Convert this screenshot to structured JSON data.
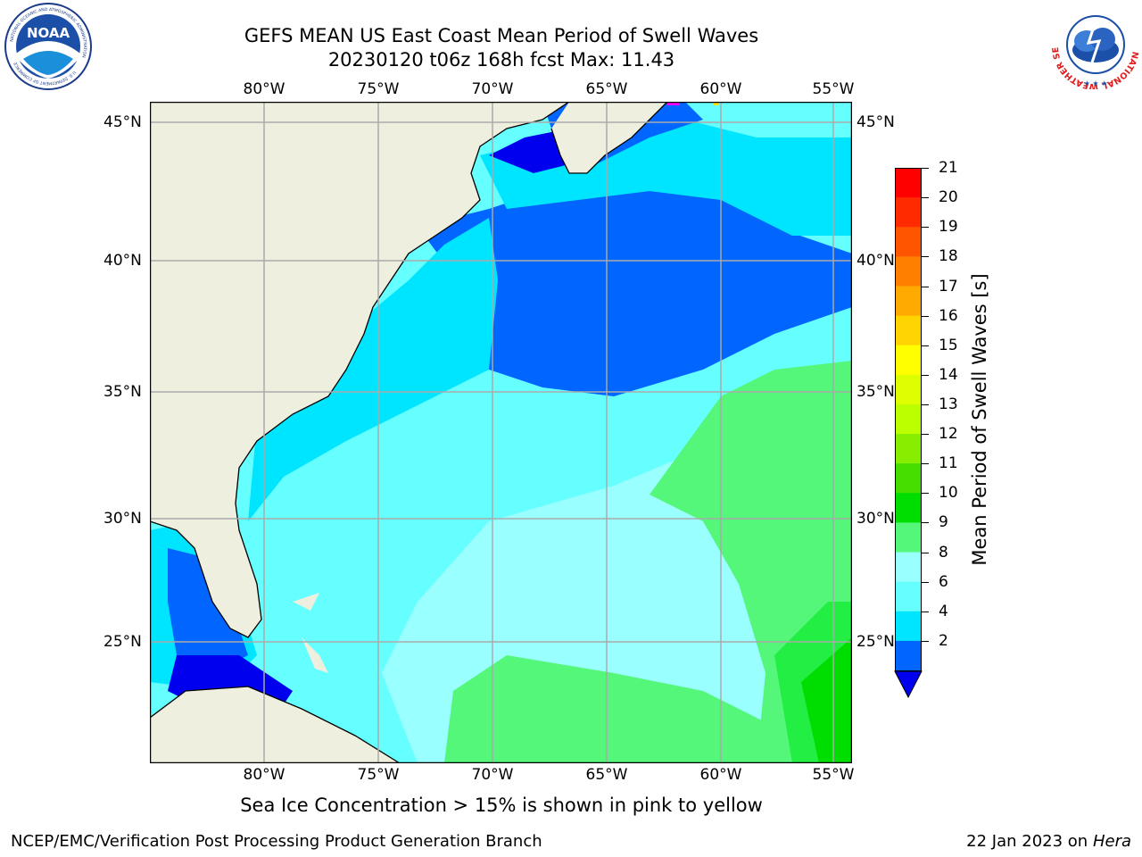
{
  "title": {
    "line1": "GEFS MEAN US East Coast Mean Period of Swell Waves",
    "line2": "20230120 t06z 168h fcst   Max: 11.43"
  },
  "map": {
    "lon_labels": [
      "80°W",
      "75°W",
      "70°W",
      "65°W",
      "60°W",
      "55°W"
    ],
    "lat_labels": [
      "45°N",
      "40°N",
      "35°N",
      "30°N",
      "25°N"
    ],
    "colors": {
      "land": "#efefdf",
      "gridline": "#aaaaaa",
      "c2": "#0000ee",
      "c3": "#0066ff",
      "c4": "#00e5ff",
      "c6": "#66ffff",
      "c8": "#99ffff",
      "c9": "#55f77a",
      "c10": "#22ee44",
      "c11": "#00dd00"
    }
  },
  "colorbar": {
    "label": "Mean Period of Swell Waves [s]",
    "ticks": [
      "21",
      "20",
      "19",
      "18",
      "17",
      "16",
      "15",
      "14",
      "13",
      "12",
      "11",
      "10",
      "9",
      "8",
      "6",
      "4",
      "2"
    ],
    "colors": [
      "#ff0000",
      "#ff2a00",
      "#ff5500",
      "#ff7f00",
      "#ffaa00",
      "#ffd400",
      "#ffff00",
      "#ddff00",
      "#bbff00",
      "#88ee00",
      "#44dd00",
      "#00dd00",
      "#55f77a",
      "#99ffff",
      "#66ffff",
      "#00e5ff",
      "#0066ff"
    ],
    "under_color": "#0000ee"
  },
  "note": "Sea Ice Concentration > 15% is shown in pink to yellow",
  "footer": {
    "left": "NCEP/EMC/Verification Post Processing Product Generation Branch",
    "right_date": "22 Jan 2023 on ",
    "right_host": "Hera"
  },
  "logos": {
    "noaa_text": "NOAA",
    "noaa_ring_top": "NATIONAL OCEANIC AND ATMOSPHERIC ADMINISTRATION",
    "noaa_ring_bottom": "U.S. DEPARTMENT OF COMMERCE",
    "nws_ring": "NATIONAL WEATHER SERVICE"
  }
}
